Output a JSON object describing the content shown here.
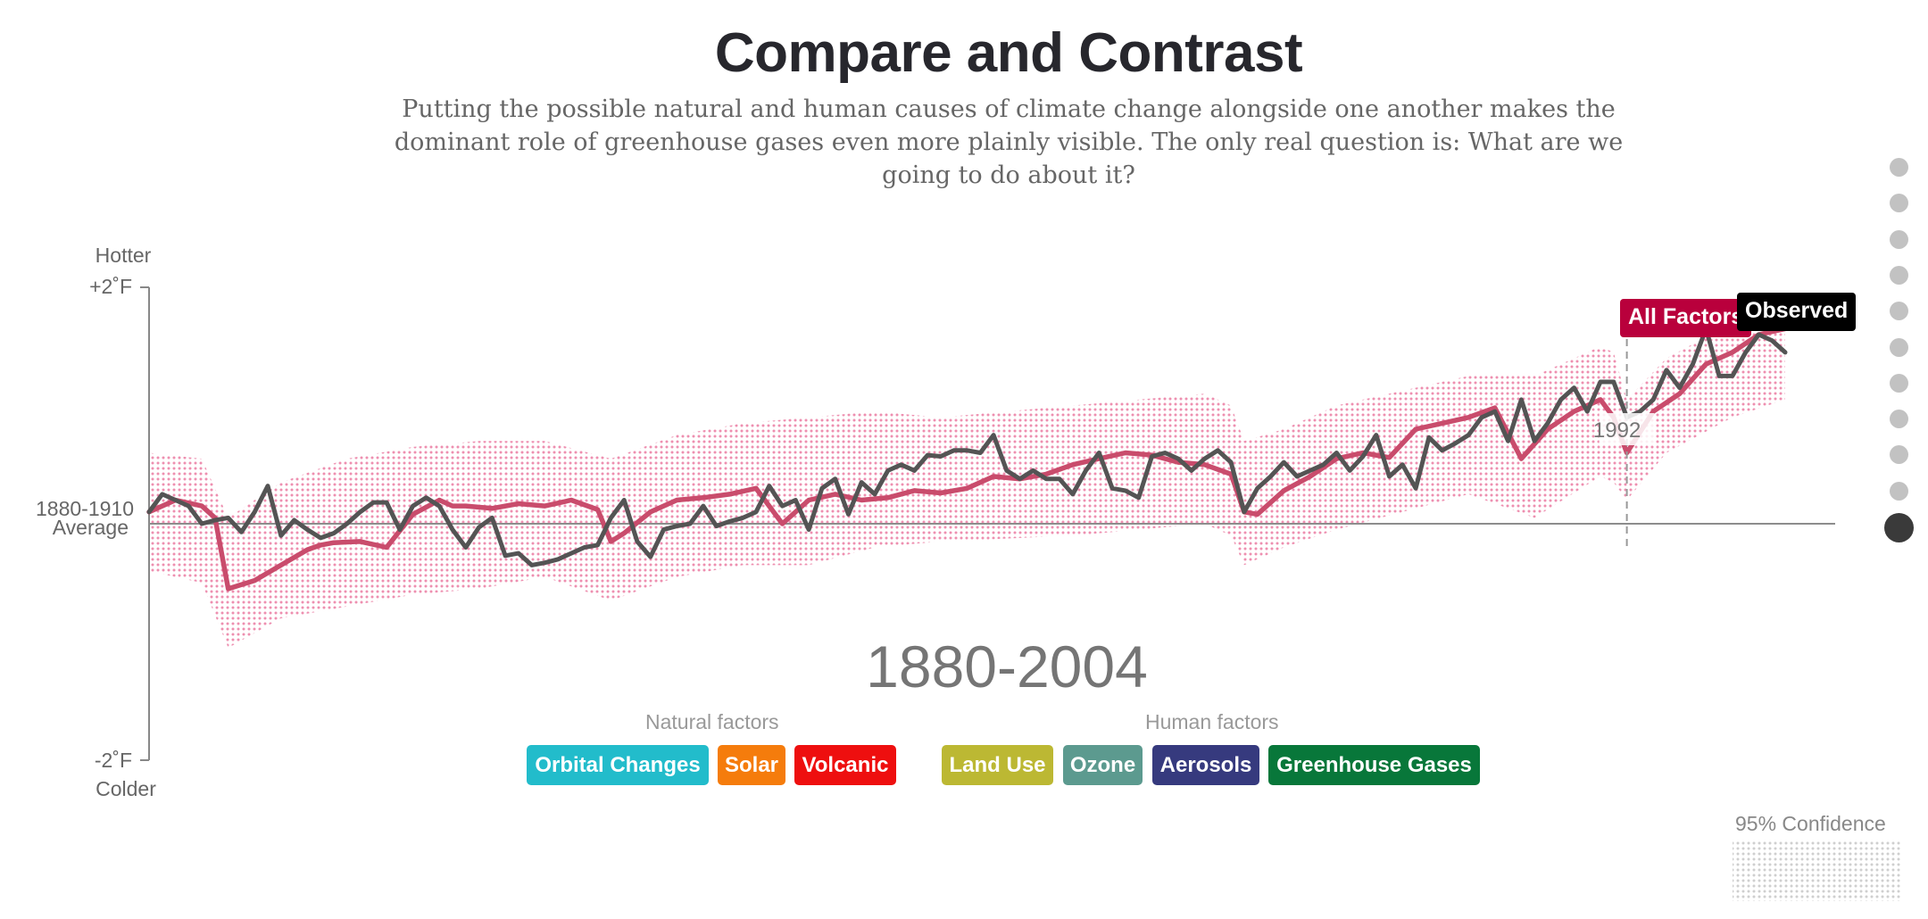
{
  "title": "Compare and Contrast",
  "subtitle": "Putting the possible natural and human causes of climate change alongside one another makes the dominant role of greenhouse gases even more plainly visible. The only real question is: What are we going to do about it?",
  "period_label": "1880-2004",
  "marker_year_label": "1992",
  "natural_factors_label": "Natural factors",
  "human_factors_label": "Human factors",
  "natural_factors": [
    {
      "label": "Orbital Changes",
      "color": "#22bccb"
    },
    {
      "label": "Solar",
      "color": "#f57c0c"
    },
    {
      "label": "Volcanic",
      "color": "#ee0f0f"
    }
  ],
  "human_factors": [
    {
      "label": "Land Use",
      "color": "#bcb833"
    },
    {
      "label": "Ozone",
      "color": "#5c9a8f"
    },
    {
      "label": "Aerosols",
      "color": "#363a7e"
    },
    {
      "label": "Greenhouse Gases",
      "color": "#08773a"
    }
  ],
  "confidence_label": "95% Confidence",
  "step_count": 11,
  "active_step": 11,
  "chart_data": {
    "type": "line",
    "y_axis": {
      "top_label": "Hotter",
      "top_tick": "+2˚F",
      "baseline_label_1": "1880-1910",
      "baseline_label_2": "Average",
      "bottom_tick": "-2˚F",
      "bottom_label": "Colder",
      "ylim": [
        -2,
        2
      ]
    },
    "xlim": [
      1880,
      2004
    ],
    "colors": {
      "all_factors": "#c94c6c",
      "observed": "#545454",
      "band": "#ee8fb0",
      "all_tag": "#b9003c",
      "obs_tag": "#000000"
    },
    "series": [
      {
        "name": "All Factors",
        "x": [
          1880,
          1882,
          1884,
          1885,
          1886,
          1888,
          1890,
          1892,
          1893,
          1894,
          1896,
          1898,
          1900,
          1902,
          1903,
          1904,
          1906,
          1908,
          1910,
          1912,
          1914,
          1915,
          1916,
          1918,
          1920,
          1922,
          1924,
          1926,
          1928,
          1930,
          1932,
          1934,
          1936,
          1938,
          1940,
          1942,
          1944,
          1946,
          1948,
          1950,
          1952,
          1954,
          1956,
          1958,
          1960,
          1962,
          1963,
          1964,
          1966,
          1968,
          1970,
          1972,
          1974,
          1976,
          1978,
          1980,
          1982,
          1984,
          1986,
          1988,
          1990,
          1991,
          1992,
          1994,
          1996,
          1998,
          2000,
          2002,
          2004
        ],
        "y": [
          0.1,
          0.2,
          0.15,
          0.05,
          -0.55,
          -0.48,
          -0.35,
          -0.22,
          -0.18,
          -0.16,
          -0.15,
          -0.2,
          0.08,
          0.2,
          0.15,
          0.15,
          0.13,
          0.17,
          0.15,
          0.2,
          0.12,
          -0.15,
          -0.08,
          0.1,
          0.2,
          0.22,
          0.25,
          0.3,
          0.0,
          0.2,
          0.25,
          0.2,
          0.22,
          0.28,
          0.26,
          0.3,
          0.4,
          0.38,
          0.42,
          0.5,
          0.55,
          0.6,
          0.58,
          0.52,
          0.5,
          0.42,
          0.1,
          0.08,
          0.28,
          0.4,
          0.55,
          0.6,
          0.56,
          0.8,
          0.85,
          0.9,
          0.98,
          0.55,
          0.8,
          0.95,
          1.05,
          0.9,
          0.6,
          0.95,
          1.1,
          1.35,
          1.45,
          1.6,
          1.65
        ]
      },
      {
        "name": "Observed",
        "x": [
          1880,
          1881,
          1882,
          1883,
          1884,
          1885,
          1886,
          1887,
          1888,
          1889,
          1890,
          1891,
          1892,
          1893,
          1894,
          1895,
          1896,
          1897,
          1898,
          1899,
          1900,
          1901,
          1902,
          1903,
          1904,
          1905,
          1906,
          1907,
          1908,
          1909,
          1910,
          1911,
          1912,
          1913,
          1914,
          1915,
          1916,
          1917,
          1918,
          1919,
          1920,
          1921,
          1922,
          1923,
          1924,
          1925,
          1926,
          1927,
          1928,
          1929,
          1930,
          1931,
          1932,
          1933,
          1934,
          1935,
          1936,
          1937,
          1938,
          1939,
          1940,
          1941,
          1942,
          1943,
          1944,
          1945,
          1946,
          1947,
          1948,
          1949,
          1950,
          1951,
          1952,
          1953,
          1954,
          1955,
          1956,
          1957,
          1958,
          1959,
          1960,
          1961,
          1962,
          1963,
          1964,
          1965,
          1966,
          1967,
          1968,
          1969,
          1970,
          1971,
          1972,
          1973,
          1974,
          1975,
          1976,
          1977,
          1978,
          1979,
          1980,
          1981,
          1982,
          1983,
          1984,
          1985,
          1986,
          1987,
          1988,
          1989,
          1990,
          1991,
          1992,
          1993,
          1994,
          1995,
          1996,
          1997,
          1998,
          1999,
          2000,
          2001,
          2002,
          2003,
          2004
        ],
        "y": [
          0.1,
          0.25,
          0.2,
          0.15,
          0.0,
          0.03,
          0.05,
          -0.07,
          0.1,
          0.32,
          -0.1,
          0.03,
          -0.05,
          -0.12,
          -0.08,
          0.0,
          0.1,
          0.18,
          0.18,
          -0.05,
          0.15,
          0.22,
          0.15,
          -0.05,
          -0.2,
          -0.03,
          0.05,
          -0.27,
          -0.25,
          -0.35,
          -0.33,
          -0.3,
          -0.25,
          -0.2,
          -0.18,
          0.05,
          0.2,
          -0.15,
          -0.28,
          -0.05,
          -0.02,
          0.0,
          0.15,
          -0.02,
          0.02,
          0.05,
          0.1,
          0.32,
          0.15,
          0.2,
          -0.05,
          0.3,
          0.38,
          0.08,
          0.35,
          0.25,
          0.45,
          0.5,
          0.45,
          0.58,
          0.57,
          0.62,
          0.62,
          0.6,
          0.75,
          0.45,
          0.38,
          0.45,
          0.38,
          0.38,
          0.25,
          0.45,
          0.6,
          0.3,
          0.28,
          0.22,
          0.57,
          0.6,
          0.55,
          0.45,
          0.55,
          0.62,
          0.52,
          0.1,
          0.3,
          0.4,
          0.52,
          0.4,
          0.45,
          0.5,
          0.6,
          0.45,
          0.57,
          0.75,
          0.4,
          0.5,
          0.3,
          0.73,
          0.62,
          0.68,
          0.75,
          0.9,
          0.95,
          0.7,
          1.05,
          0.7,
          0.85,
          1.05,
          1.15,
          0.95,
          1.2,
          1.2,
          0.9,
          0.95,
          1.05,
          1.3,
          1.15,
          1.35,
          1.65,
          1.25,
          1.25,
          1.45,
          1.6,
          1.55,
          1.45
        ]
      }
    ],
    "confidence_band": {
      "x": [
        1880,
        1884,
        1886,
        1890,
        1895,
        1900,
        1905,
        1910,
        1915,
        1920,
        1925,
        1930,
        1935,
        1940,
        1950,
        1960,
        1962,
        1963,
        1966,
        1970,
        1980,
        1985,
        1990,
        1991,
        1992,
        1995,
        2000,
        2004
      ],
      "upper": [
        0.6,
        0.55,
        0.05,
        0.35,
        0.55,
        0.65,
        0.7,
        0.7,
        0.55,
        0.75,
        0.85,
        0.9,
        0.95,
        0.9,
        1.0,
        1.1,
        1.0,
        0.7,
        0.8,
        1.0,
        1.25,
        1.25,
        1.5,
        1.45,
        1.05,
        1.4,
        1.7,
        1.85
      ],
      "lower": [
        -0.4,
        -0.5,
        -1.05,
        -0.8,
        -0.7,
        -0.6,
        -0.55,
        -0.45,
        -0.65,
        -0.45,
        -0.35,
        -0.35,
        -0.2,
        -0.15,
        -0.1,
        0.0,
        -0.1,
        -0.35,
        -0.2,
        -0.05,
        0.25,
        0.05,
        0.4,
        0.35,
        0.2,
        0.6,
        0.9,
        1.05
      ]
    },
    "marker_year": 1992,
    "labels": [
      "All Factors",
      "Observed"
    ]
  }
}
